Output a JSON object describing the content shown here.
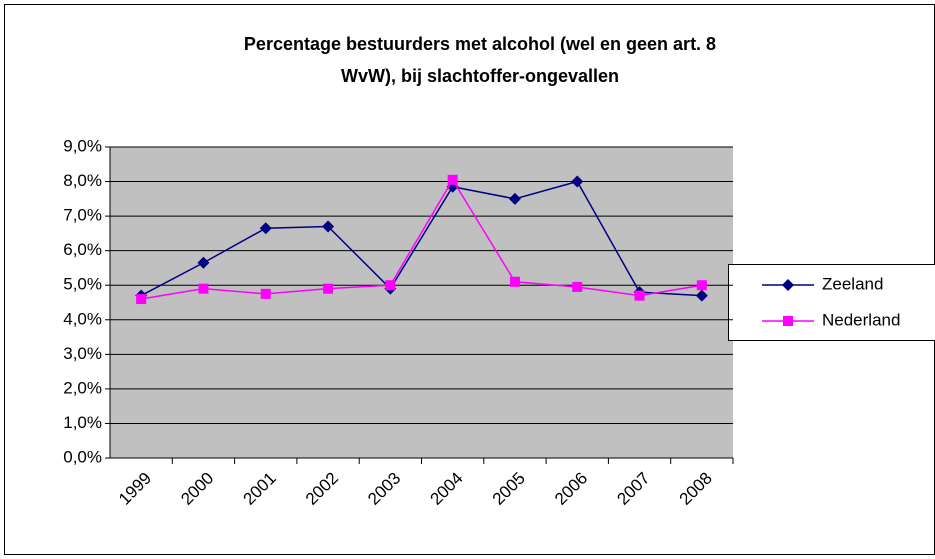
{
  "chart_data": {
    "type": "line",
    "title": [
      "Percentage bestuurders met alcohol (wel en geen art. 8",
      "WvW), bij slachtoffer-ongevallen"
    ],
    "categories": [
      "1999",
      "2000",
      "2001",
      "2002",
      "2003",
      "2004",
      "2005",
      "2006",
      "2007",
      "2008"
    ],
    "series": [
      {
        "name": "Zeeland",
        "color": "#000080",
        "marker": "diamond",
        "values": [
          4.7,
          5.65,
          6.65,
          6.7,
          4.9,
          7.85,
          7.5,
          8.0,
          4.8,
          4.7
        ]
      },
      {
        "name": "Nederland",
        "color": "#ff00ff",
        "marker": "square",
        "values": [
          4.6,
          4.9,
          4.75,
          4.9,
          5.0,
          8.05,
          5.1,
          4.95,
          4.7,
          5.0
        ]
      }
    ],
    "ylim": [
      0,
      9
    ],
    "yticks": [
      {
        "value": 0,
        "label": "0,0%"
      },
      {
        "value": 1,
        "label": "1,0%"
      },
      {
        "value": 2,
        "label": "2,0%"
      },
      {
        "value": 3,
        "label": "3,0%"
      },
      {
        "value": 4,
        "label": "4,0%"
      },
      {
        "value": 5,
        "label": "5,0%"
      },
      {
        "value": 6,
        "label": "6,0%"
      },
      {
        "value": 7,
        "label": "7,0%"
      },
      {
        "value": 8,
        "label": "8,0%"
      },
      {
        "value": 9,
        "label": "9,0%"
      }
    ],
    "grid": true,
    "legend": "right"
  }
}
